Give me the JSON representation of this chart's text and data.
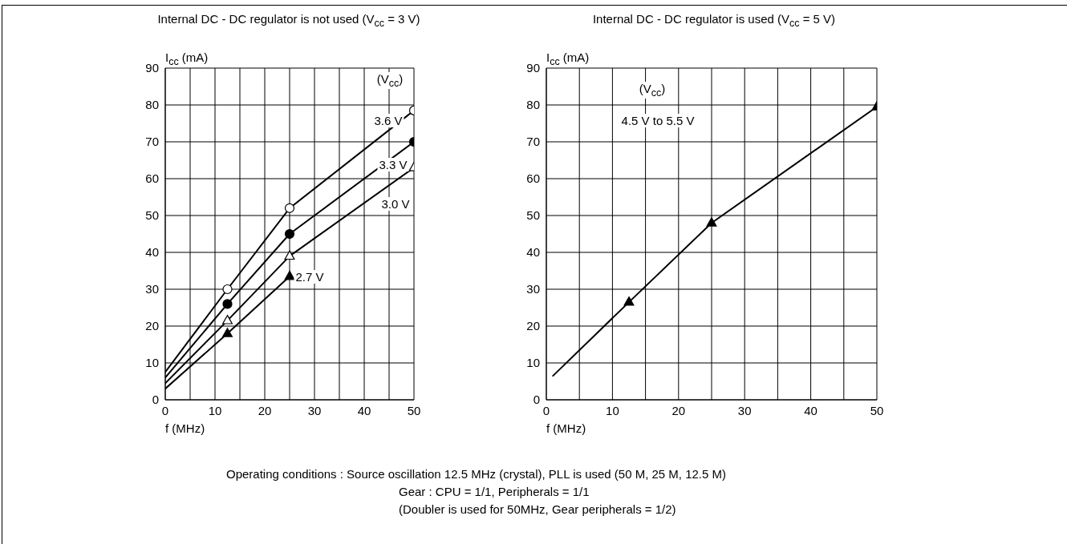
{
  "chart_data": [
    {
      "type": "line",
      "title": "Internal DC - DC regulator is not used (V$_{cc}$ = 3 V)",
      "xlabel": "f (MHz)",
      "ylabel": "I$_{cc}$ (mA)",
      "legend_title": "(V$_{cc}$)",
      "xlim": [
        0,
        50
      ],
      "ylim": [
        0,
        90
      ],
      "xticks": [
        0,
        {
          "value": 5,
          "label": null
        },
        10,
        {
          "value": 15,
          "label": null
        },
        20,
        {
          "value": 25,
          "label": null
        },
        30,
        {
          "value": 35,
          "label": null
        },
        40,
        {
          "value": 45,
          "label": null
        },
        50
      ],
      "yticks": [
        0,
        10,
        20,
        30,
        40,
        50,
        60,
        70,
        80,
        90
      ],
      "grid": true,
      "line_style": "solid",
      "series": [
        {
          "name": "3.6 V",
          "color": "#000000",
          "marker": "circle",
          "x": [
            12.5,
            25,
            50
          ],
          "values": [
            30,
            52,
            78.5
          ]
        },
        {
          "name": "3.3 V",
          "color": "#000000",
          "marker": "circle",
          "x": [
            12.5,
            25,
            50
          ],
          "values": [
            26,
            45,
            70
          ]
        },
        {
          "name": "3.0 V",
          "color": "#000000",
          "marker": "triangle",
          "x": [
            12.5,
            25,
            50
          ],
          "values": [
            21.5,
            39,
            63
          ]
        },
        {
          "name": "2.7 V",
          "color": "#000000",
          "marker": "triangle",
          "x": [
            12.5,
            25
          ],
          "values": [
            18,
            33.5
          ]
        },
        {
          "type": "line",
          "color": "#000000",
          "marker": "none",
          "x": [
            0,
            12.5
          ],
          "values": [
            7.5,
            30
          ]
        },
        {
          "type": "line",
          "color": "#000000",
          "marker": "none",
          "x": [
            0,
            12.5
          ],
          "values": [
            6,
            26
          ]
        },
        {
          "type": "line",
          "color": "#000000",
          "marker": "none",
          "x": [
            0,
            12.5
          ],
          "values": [
            4.5,
            21.5
          ]
        },
        {
          "type": "line",
          "color": "#000000",
          "marker": "none",
          "x": [
            0,
            12.5
          ],
          "values": [
            3,
            18
          ]
        }
      ],
      "annotations": [
        "Operating conditions : Source oscillation 12.5 MHz (crystal), PLL is used (50 M, 25 M, 12.5 M)",
        "Gear : CPU = 1/1, Peripherals = 1/1",
        "(Doubler is used for 50MHz, Gear peripherals = 1/2)"
      ]
    },
    {
      "type": "line",
      "title": "Internal DC - DC regulator is used (V$_{cc}$ = 5 V)",
      "xlabel": "f (MHz)",
      "ylabel": "I$_{cc}$ (mA)",
      "legend_title": "(V$_{cc}$)",
      "xlim": [
        0,
        50
      ],
      "ylim": [
        0,
        90
      ],
      "xticks": [
        0,
        {
          "value": 5,
          "label": null
        },
        10,
        {
          "value": 15,
          "label": null
        },
        20,
        {
          "value": 25,
          "label": null
        },
        30,
        {
          "value": 35,
          "label": null
        },
        40,
        {
          "value": 45,
          "label": null
        },
        50
      ],
      "yticks": [
        0,
        10,
        20,
        30,
        40,
        50,
        60,
        70,
        80,
        90
      ],
      "grid": true,
      "line_style": "solid",
      "series": [
        {
          "name": "4.5 V to 5.5 V",
          "color": "#000000",
          "marker": "triangle",
          "x": [
            12.5,
            25,
            50
          ],
          "values": [
            26.5,
            48,
            79.5
          ]
        },
        {
          "type": "line",
          "color": "#000000",
          "marker": "none",
          "x": [
            1,
            12.5
          ],
          "values": [
            6.5,
            26.5
          ]
        }
      ]
    }
  ]
}
